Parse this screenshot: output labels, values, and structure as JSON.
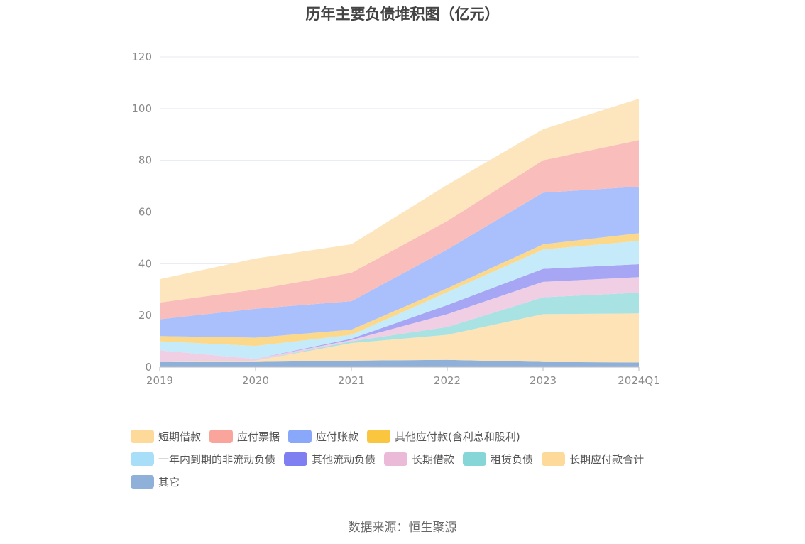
{
  "chart_data": {
    "type": "area",
    "stacked": true,
    "title": "历年主要负债堆积图（亿元）",
    "categories": [
      "2019",
      "2020",
      "2021",
      "2022",
      "2023",
      "2024Q1"
    ],
    "ylim": [
      0,
      120
    ],
    "yticks": [
      0,
      20,
      40,
      60,
      80,
      100,
      120
    ],
    "grid": true,
    "legend_position": "bottom",
    "series": [
      {
        "name": "其它",
        "color": "#8fb0d8",
        "values": [
          2.0,
          2.0,
          2.5,
          2.8,
          2.0,
          1.8
        ]
      },
      {
        "name": "长期应付款合计",
        "color": "#fde3b5",
        "values": [
          0.0,
          0.5,
          6.8,
          9.7,
          18.5,
          19.0
        ]
      },
      {
        "name": "租赁负债",
        "color": "#a8e2e3",
        "values": [
          0.0,
          0.0,
          0.7,
          3.0,
          6.5,
          8.0
        ]
      },
      {
        "name": "长期借款",
        "color": "#f0cfe4",
        "values": [
          4.5,
          0.7,
          0.5,
          5.0,
          6.0,
          6.0
        ]
      },
      {
        "name": "其他流动负债",
        "color": "#a6a6f4",
        "values": [
          0.0,
          0.0,
          0.5,
          3.5,
          5.0,
          5.0
        ]
      },
      {
        "name": "一年内到期的非流动负债",
        "color": "#c5eaf9",
        "values": [
          3.5,
          5.0,
          1.5,
          5.0,
          7.5,
          9.0
        ]
      },
      {
        "name": "其他应付款(含利息和股利)",
        "color": "#fcd88a",
        "values": [
          2.0,
          3.2,
          2.0,
          1.5,
          2.0,
          3.0
        ]
      },
      {
        "name": "应付账款",
        "color": "#a9c0fc",
        "values": [
          6.5,
          11.2,
          11.0,
          15.0,
          20.0,
          18.0
        ]
      },
      {
        "name": "应付票据",
        "color": "#f9bebb",
        "values": [
          6.5,
          7.4,
          11.0,
          11.0,
          12.5,
          18.0
        ]
      },
      {
        "name": "短期借款",
        "color": "#fde6bd",
        "values": [
          9.0,
          12.0,
          11.0,
          14.0,
          12.0,
          16.0
        ]
      }
    ]
  },
  "legend": {
    "rows": [
      [
        {
          "label": "短期借款",
          "color": "#fdd99a"
        },
        {
          "label": "应付票据",
          "color": "#f9a59b"
        },
        {
          "label": "应付账款",
          "color": "#8aa8f9"
        },
        {
          "label": "其他应付款(含利息和股利)",
          "color": "#fbc63f"
        }
      ],
      [
        {
          "label": "一年内到期的非流动负债",
          "color": "#a9def9"
        },
        {
          "label": "其他流动负债",
          "color": "#7f7ff2"
        },
        {
          "label": "长期借款",
          "color": "#ebbad9"
        },
        {
          "label": "租赁负债",
          "color": "#86d6d8"
        },
        {
          "label": "长期应付款合计",
          "color": "#fdd99a"
        }
      ],
      [
        {
          "label": "其它",
          "color": "#8fb0d8"
        }
      ]
    ]
  },
  "source": "数据来源：恒生聚源"
}
